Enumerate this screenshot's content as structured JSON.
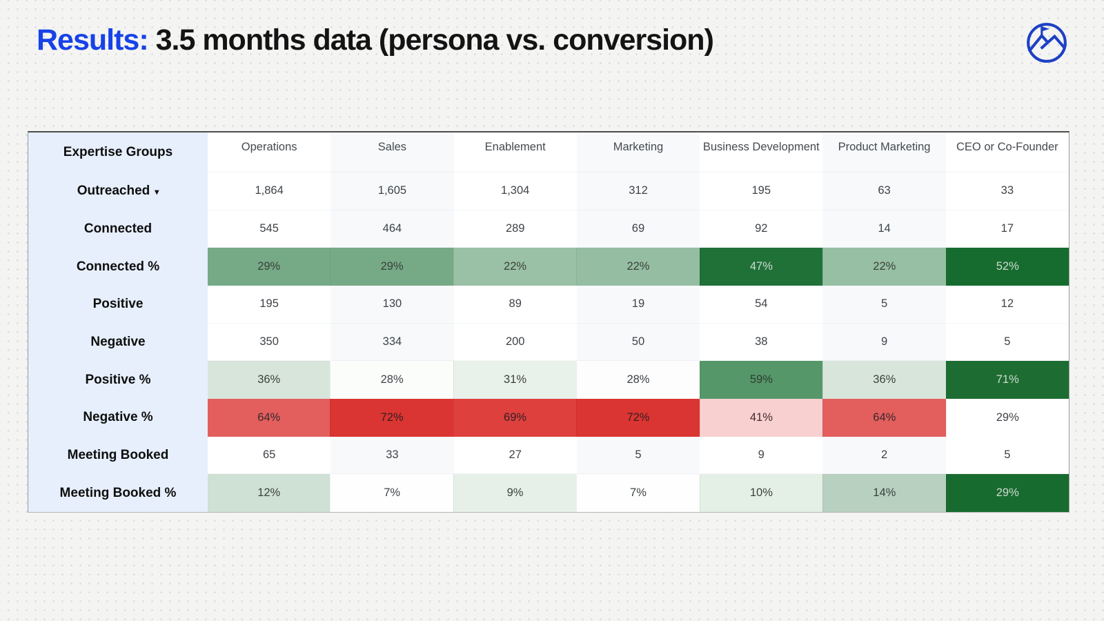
{
  "title": {
    "highlight": "Results:",
    "rest": " 3.5 months data (persona vs. conversion)"
  },
  "logo": {
    "name": "summit-mountain-logo",
    "color": "#1d40c4"
  },
  "colors": {
    "accent_blue": "#1742e8",
    "label_column_bg": "#e7effc",
    "column_stripes": [
      "#ffffff",
      "#f7f9fb"
    ],
    "green_dark": "#1f7138",
    "green_medium": "#76a986",
    "green_light": "#d8e5db",
    "red_strong": "#da3532",
    "red_medium": "#e25f5e",
    "red_pale": "#f8d0d0"
  },
  "table": {
    "corner_label": "Expertise Groups",
    "dropdown_caret": "▾",
    "columns": [
      "Operations",
      "Sales",
      "Enablement",
      "Marketing",
      "Business Development",
      "Product Marketing",
      "CEO or Co-Founder"
    ],
    "rows": [
      {
        "key": "outreached",
        "label": "Outreached",
        "has_dropdown": true,
        "values": [
          "1,864",
          "1,605",
          "1,304",
          "312",
          "195",
          "63",
          "33"
        ]
      },
      {
        "key": "connected",
        "label": "Connected",
        "values": [
          "545",
          "464",
          "289",
          "69",
          "92",
          "14",
          "17"
        ]
      },
      {
        "key": "connected-pct",
        "label": "Connected %",
        "values": [
          "29%",
          "29%",
          "22%",
          "22%",
          "47%",
          "22%",
          "52%"
        ],
        "bg": [
          "#76a986",
          "#76a986",
          "#9ac0a5",
          "#95bda2",
          "#1f7138",
          "#97bfa3",
          "#166c2e"
        ],
        "fg": [
          "#39413a",
          "#39413a",
          "#39413a",
          "#39413a",
          "#d2dad3",
          "#39413a",
          "#d2dad3"
        ]
      },
      {
        "key": "positive",
        "label": "Positive",
        "values": [
          "195",
          "130",
          "89",
          "19",
          "54",
          "5",
          "12"
        ]
      },
      {
        "key": "negative",
        "label": "Negative",
        "values": [
          "350",
          "334",
          "200",
          "50",
          "38",
          "9",
          "5"
        ]
      },
      {
        "key": "positive-pct",
        "label": "Positive %",
        "values": [
          "36%",
          "28%",
          "31%",
          "28%",
          "59%",
          "36%",
          "71%"
        ],
        "bg": [
          "#d8e5db",
          "#fbfdfb",
          "#e9f1eb",
          "#fcfdfc",
          "#559768",
          "#d8e5db",
          "#1d6d32"
        ],
        "fg": [
          "#39413a",
          "#3e4247",
          "#39413a",
          "#3e4247",
          "#2f3c32",
          "#39413a",
          "#d2dad3"
        ]
      },
      {
        "key": "negative-pct",
        "label": "Negative %",
        "values": [
          "64%",
          "72%",
          "69%",
          "72%",
          "41%",
          "64%",
          "29%"
        ],
        "bg": [
          "#e25f5e",
          "#da3532",
          "#dd403d",
          "#da3532",
          "#f8d0d0",
          "#e25f5e",
          "#ffffff"
        ],
        "fg": [
          "#3a272b",
          "#331f22",
          "#331f22",
          "#331f22",
          "#44282b",
          "#3a272b",
          "#3e4247"
        ]
      },
      {
        "key": "meeting-booked",
        "label": "Meeting Booked",
        "values": [
          "65",
          "33",
          "27",
          "5",
          "9",
          "2",
          "5"
        ]
      },
      {
        "key": "meeting-booked-pct",
        "label": "Meeting Booked %",
        "values": [
          "12%",
          "7%",
          "9%",
          "7%",
          "10%",
          "14%",
          "29%"
        ],
        "bg": [
          "#cfe0d4",
          "#fdfefd",
          "#e6f0e8",
          "#fdfefd",
          "#e4efe6",
          "#b8d0bf",
          "#186b2f"
        ],
        "fg": [
          "#39413a",
          "#3e4247",
          "#39413a",
          "#3e4247",
          "#39413a",
          "#39413a",
          "#d2dad3"
        ]
      }
    ]
  },
  "chart_data": {
    "type": "table",
    "title": "Results: 3.5 months data (persona vs. conversion)",
    "columns": [
      "Operations",
      "Sales",
      "Enablement",
      "Marketing",
      "Business Development",
      "Product Marketing",
      "CEO or Co-Founder"
    ],
    "rows": [
      {
        "label": "Outreached",
        "values": [
          1864,
          1605,
          1304,
          312,
          195,
          63,
          33
        ]
      },
      {
        "label": "Connected",
        "values": [
          545,
          464,
          289,
          69,
          92,
          14,
          17
        ]
      },
      {
        "label": "Connected %",
        "unit": "%",
        "values": [
          29,
          29,
          22,
          22,
          47,
          22,
          52
        ]
      },
      {
        "label": "Positive",
        "values": [
          195,
          130,
          89,
          19,
          54,
          5,
          12
        ]
      },
      {
        "label": "Negative",
        "values": [
          350,
          334,
          200,
          50,
          38,
          9,
          5
        ]
      },
      {
        "label": "Positive %",
        "unit": "%",
        "values": [
          36,
          28,
          31,
          28,
          59,
          36,
          71
        ]
      },
      {
        "label": "Negative %",
        "unit": "%",
        "values": [
          64,
          72,
          69,
          72,
          41,
          64,
          29
        ]
      },
      {
        "label": "Meeting Booked",
        "values": [
          65,
          33,
          27,
          5,
          9,
          2,
          5
        ]
      },
      {
        "label": "Meeting Booked %",
        "unit": "%",
        "values": [
          12,
          7,
          9,
          7,
          10,
          14,
          29
        ]
      }
    ],
    "layout_hints": "heatmap shading: green scale on Connected %, Positive %, Meeting Booked % (darker = higher); red scale on Negative % (stronger red = higher)"
  }
}
